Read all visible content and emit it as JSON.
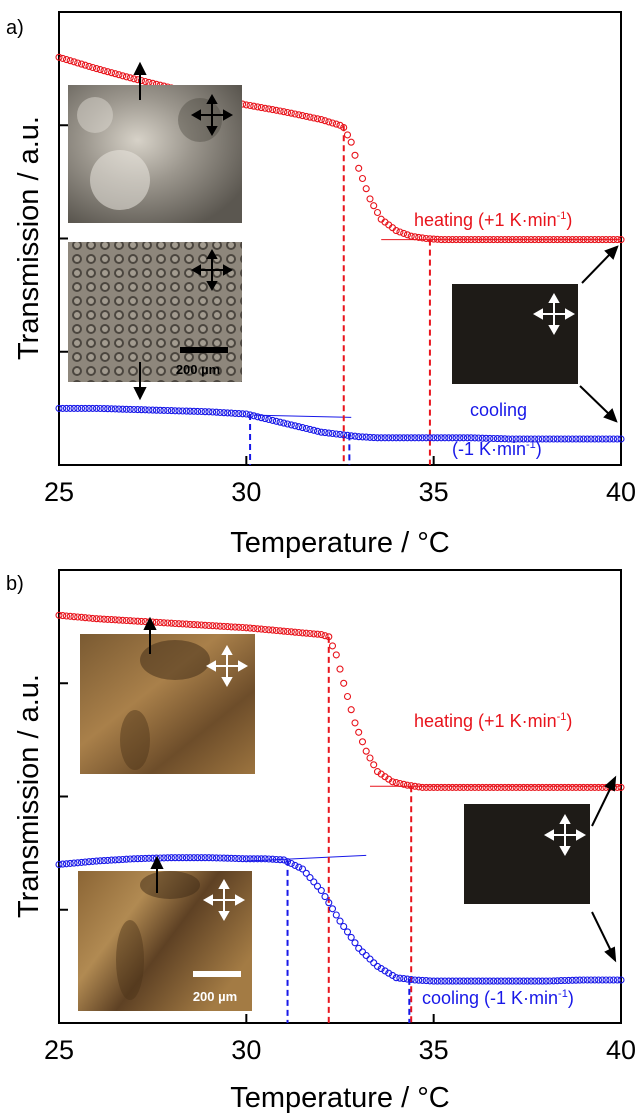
{
  "chart_data": [
    {
      "panel_label": "a)",
      "type": "scatter",
      "xlabel": "Temperature / °C",
      "ylabel": "Transmission / a.u.",
      "xlim": [
        25,
        40
      ],
      "ylim": [
        0,
        4
      ],
      "xticks": [
        25,
        30,
        35,
        40
      ],
      "yticks": [
        1,
        2,
        3
      ],
      "grid": false,
      "series": [
        {
          "name": "heating",
          "label_line1": "heating (+1 K·min",
          "label_sup": "-1",
          "label_line2": "",
          "color": "#e8141c",
          "marker": "open-circle",
          "x": [
            25.0,
            26.0,
            27.0,
            28.0,
            29.0,
            30.0,
            31.0,
            32.0,
            32.5,
            32.6,
            32.8,
            33.0,
            33.3,
            33.6,
            34.0,
            34.4,
            34.8,
            35.2,
            36.0,
            37.0,
            38.0,
            39.0,
            40.0
          ],
          "y": [
            3.6,
            3.5,
            3.41,
            3.33,
            3.25,
            3.18,
            3.12,
            3.05,
            3.0,
            2.98,
            2.85,
            2.62,
            2.35,
            2.17,
            2.07,
            2.02,
            2.0,
            1.99,
            1.99,
            1.99,
            1.99,
            1.99,
            1.99
          ]
        },
        {
          "name": "cooling",
          "label_line1": "cooling",
          "label_sup": "",
          "label_line2": "(-1 K·min",
          "label_line2_sup": "-1",
          "color": "#1818e8",
          "marker": "open-circle",
          "x": [
            25.0,
            26.0,
            27.0,
            28.0,
            29.0,
            30.0,
            30.5,
            31.0,
            31.5,
            32.0,
            32.5,
            33.0,
            33.5,
            34.0,
            35.0,
            36.0,
            37.0,
            38.0,
            39.0,
            40.0
          ],
          "y": [
            0.5,
            0.5,
            0.49,
            0.48,
            0.47,
            0.45,
            0.41,
            0.37,
            0.33,
            0.29,
            0.27,
            0.25,
            0.24,
            0.24,
            0.24,
            0.24,
            0.23,
            0.23,
            0.23,
            0.23
          ]
        }
      ],
      "dashed_markers": [
        {
          "x": 32.6,
          "y_top": 3.0,
          "color": "#e8141c"
        },
        {
          "x": 34.9,
          "y_top": 1.99,
          "color": "#e8141c"
        },
        {
          "x": 30.1,
          "y_top": 0.45,
          "color": "#1818e8"
        },
        {
          "x": 32.75,
          "y_top": 0.27,
          "color": "#1818e8"
        }
      ],
      "tangent_lines": [
        {
          "x1": 33.6,
          "y1": 1.99,
          "x2": 40.0,
          "y2": 1.99,
          "color": "#e8141c"
        },
        {
          "x1": 30.2,
          "y1": 0.44,
          "x2": 32.8,
          "y2": 0.42,
          "color": "#1818e8"
        }
      ],
      "inset_scale_label": "200 µm"
    },
    {
      "panel_label": "b)",
      "type": "scatter",
      "xlabel": "Temperature / °C",
      "ylabel": "Transmission / a.u.",
      "xlim": [
        25,
        40
      ],
      "ylim": [
        0,
        4
      ],
      "xticks": [
        25,
        30,
        35,
        40
      ],
      "yticks": [
        1,
        2,
        3
      ],
      "grid": false,
      "series": [
        {
          "name": "heating",
          "label_line1": "heating (+1 K·min",
          "label_sup": "-1",
          "label_line2": "",
          "color": "#e8141c",
          "marker": "open-circle",
          "x": [
            25.0,
            26.0,
            27.0,
            28.0,
            29.0,
            30.0,
            31.0,
            32.0,
            32.2,
            32.4,
            32.6,
            32.9,
            33.2,
            33.5,
            33.9,
            34.3,
            34.7,
            35.5,
            37.0,
            38.5,
            40.0
          ],
          "y": [
            3.6,
            3.57,
            3.55,
            3.53,
            3.51,
            3.49,
            3.46,
            3.43,
            3.41,
            3.25,
            3.0,
            2.65,
            2.4,
            2.22,
            2.13,
            2.1,
            2.08,
            2.08,
            2.08,
            2.08,
            2.08
          ]
        },
        {
          "name": "cooling",
          "label_line1": "cooling (-1 K·min",
          "label_sup": "-1",
          "label_line2": "",
          "color": "#1818e8",
          "marker": "open-circle",
          "x": [
            25.0,
            26.0,
            27.0,
            28.0,
            29.0,
            30.0,
            30.5,
            31.0,
            31.5,
            32.0,
            32.5,
            33.0,
            33.5,
            34.0,
            34.5,
            35.0,
            36.0,
            37.0,
            38.0,
            39.0,
            40.0
          ],
          "y": [
            1.4,
            1.43,
            1.45,
            1.46,
            1.46,
            1.45,
            1.45,
            1.44,
            1.36,
            1.17,
            0.9,
            0.66,
            0.5,
            0.4,
            0.38,
            0.37,
            0.37,
            0.37,
            0.37,
            0.38,
            0.38
          ]
        }
      ],
      "dashed_markers": [
        {
          "x": 32.2,
          "y_top": 3.41,
          "color": "#e8141c"
        },
        {
          "x": 34.4,
          "y_top": 2.09,
          "color": "#e8141c"
        },
        {
          "x": 31.1,
          "y_top": 1.44,
          "color": "#1818e8"
        },
        {
          "x": 34.35,
          "y_top": 0.39,
          "color": "#1818e8"
        }
      ],
      "tangent_lines": [
        {
          "x1": 33.3,
          "y1": 2.09,
          "x2": 40.0,
          "y2": 2.09,
          "color": "#e8141c"
        },
        {
          "x1": 30.0,
          "y1": 1.43,
          "x2": 33.2,
          "y2": 1.48,
          "color": "#1818e8"
        }
      ],
      "inset_scale_label": "200 µm"
    }
  ]
}
